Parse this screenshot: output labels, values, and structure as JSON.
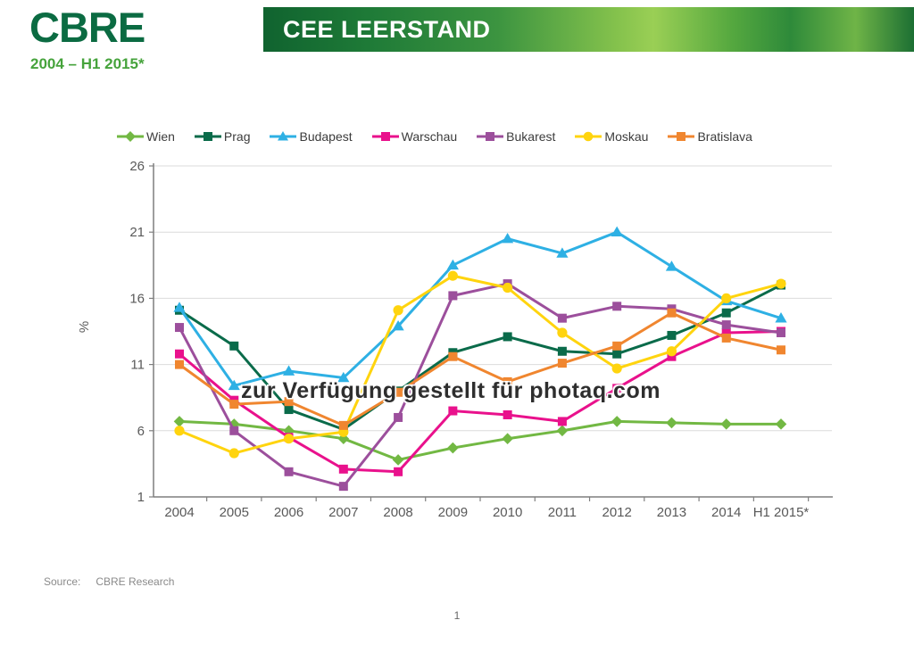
{
  "header": {
    "logo": "CBRE",
    "title": "CEE LEERSTAND",
    "subtitle": "2004 – H1 2015*",
    "colors": {
      "logo_green": "#0B6B42",
      "bar_dark_green": "#10632F",
      "bar_light_green": "#9ACF55",
      "subtitle_green": "#46A33C"
    }
  },
  "watermark": {
    "text": "zur Verfügung gestellt für photaq.com"
  },
  "footer": {
    "source_label": "Source:",
    "source_value": "CBRE Research",
    "page_number": "1"
  },
  "chart_data": {
    "type": "line",
    "title": "CEE LEERSTAND 2004 – H1 2015*",
    "categories": [
      "2004",
      "2005",
      "2006",
      "2007",
      "2008",
      "2009",
      "2010",
      "2011",
      "2012",
      "2013",
      "2014",
      "H1 2015*"
    ],
    "ylabel": "%",
    "xlabel": "",
    "ylim": [
      1,
      26
    ],
    "y_ticks": [
      1,
      6,
      11,
      16,
      21,
      26
    ],
    "grid": true,
    "legend_position": "top",
    "series": [
      {
        "name": "Wien",
        "color": "#72B843",
        "marker": "diamond",
        "values": [
          6.7,
          6.5,
          6.0,
          5.4,
          3.8,
          4.7,
          5.4,
          6.0,
          6.7,
          6.6,
          6.5,
          6.5
        ]
      },
      {
        "name": "Prag",
        "color": "#0A6B4A",
        "marker": "square",
        "values": [
          15.1,
          12.4,
          7.6,
          6.1,
          9.0,
          11.9,
          13.1,
          12.0,
          11.8,
          13.2,
          14.9,
          17.0
        ]
      },
      {
        "name": "Budapest",
        "color": "#2EB0E4",
        "marker": "triangle",
        "values": [
          15.3,
          9.4,
          10.5,
          10.0,
          13.9,
          18.5,
          20.5,
          19.4,
          21.0,
          18.4,
          15.8,
          14.5
        ]
      },
      {
        "name": "Warschau",
        "color": "#E9118C",
        "marker": "square",
        "values": [
          11.8,
          8.3,
          5.5,
          3.1,
          2.9,
          7.5,
          7.2,
          6.7,
          9.2,
          11.6,
          13.4,
          13.5
        ]
      },
      {
        "name": "Bukarest",
        "color": "#9C4F9C",
        "marker": "square",
        "values": [
          13.8,
          6.0,
          2.9,
          1.8,
          7.0,
          16.2,
          17.1,
          14.5,
          15.4,
          15.2,
          14.0,
          13.4
        ]
      },
      {
        "name": "Moskau",
        "color": "#FFD40E",
        "marker": "circle",
        "values": [
          6.0,
          4.3,
          5.4,
          5.9,
          15.1,
          17.7,
          16.8,
          13.4,
          10.7,
          12.0,
          16.0,
          17.1
        ]
      },
      {
        "name": "Bratislava",
        "color": "#F0862F",
        "marker": "square",
        "values": [
          11.0,
          8.0,
          8.2,
          6.4,
          8.9,
          11.6,
          9.7,
          11.1,
          12.4,
          14.9,
          13.0,
          12.1
        ]
      }
    ],
    "axis_color": "#7F7F7F",
    "gridline_color": "#DBDBDB",
    "tick_label_color": "#595959"
  }
}
